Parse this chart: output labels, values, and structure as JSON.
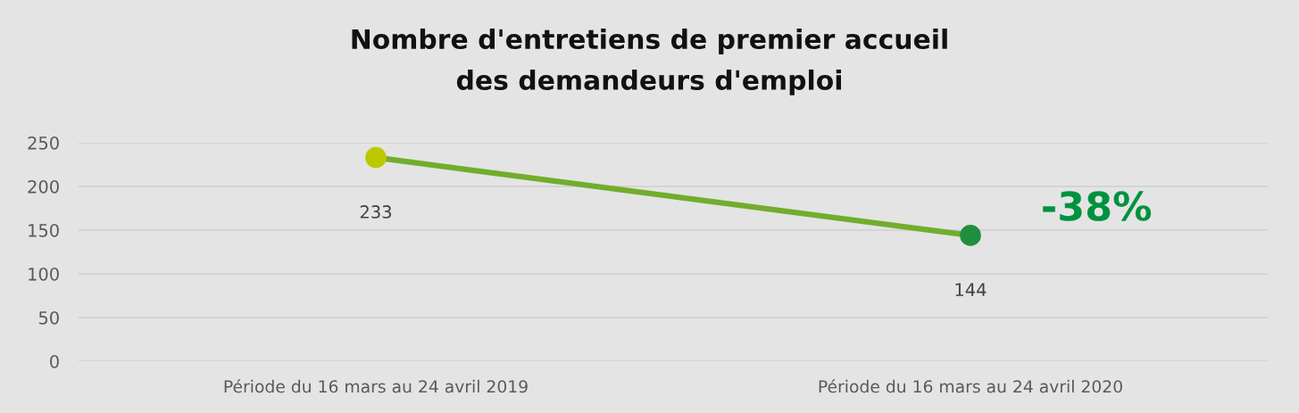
{
  "chart_data": {
    "type": "line",
    "title": "Nombre d'entretiens de premier accueil\ndes demandeurs d'emploi",
    "categories": [
      "Période du 16 mars au 24 avril 2019",
      "Période du 16 mars au 24 avril 2020"
    ],
    "series": [
      {
        "values": [
          233,
          144
        ],
        "color": "#72ad2c",
        "colors": [
          "#bdc900",
          "#1f8f3f"
        ]
      }
    ],
    "ylim": [
      0,
      250
    ],
    "yticks": [
      0,
      50,
      100,
      150,
      200,
      250
    ],
    "grid": "y",
    "legend": false,
    "marker": "circle",
    "line_style": "solid",
    "data_labels": true,
    "annotations": [
      "-38%"
    ]
  }
}
